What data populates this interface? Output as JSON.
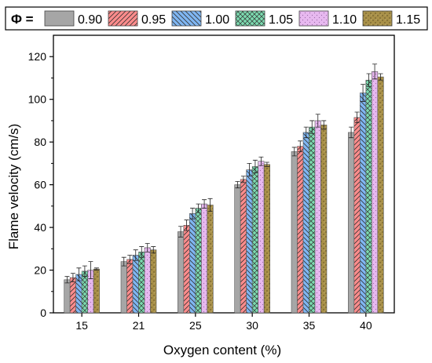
{
  "chart_data": {
    "type": "bar",
    "title": "",
    "xlabel": "Oxygen content (%)",
    "ylabel": "Flame velocity (cm/s)",
    "ylim": [
      0,
      130
    ],
    "yticks": [
      0,
      20,
      40,
      60,
      80,
      100,
      120
    ],
    "categories": [
      "15",
      "21",
      "25",
      "30",
      "35",
      "40"
    ],
    "legend": {
      "title": "Φ =",
      "placement": "top"
    },
    "series": [
      {
        "name": "0.90",
        "color": "#a6a6a6",
        "pattern": "solid",
        "values": [
          15.5,
          24,
          38,
          60,
          75.5,
          84.5
        ],
        "errors": [
          1.5,
          2,
          2.5,
          1.5,
          2,
          2.5
        ]
      },
      {
        "name": "0.95",
        "color": "#ff8c8c",
        "pattern": "diag-right",
        "values": [
          16.5,
          25,
          41,
          62.5,
          78,
          91.5
        ],
        "errors": [
          2,
          2,
          2.5,
          1.5,
          2.5,
          2.5
        ]
      },
      {
        "name": "1.00",
        "color": "#7fb6f2",
        "pattern": "diag-left",
        "values": [
          18,
          27,
          46.5,
          67,
          84.5,
          103
        ],
        "errors": [
          3,
          2.5,
          2.5,
          3,
          2.5,
          4
        ]
      },
      {
        "name": "1.05",
        "color": "#7cdbb0",
        "pattern": "crosshatch",
        "values": [
          19.5,
          28.5,
          49,
          68.5,
          87,
          109
        ],
        "errors": [
          2.5,
          2.5,
          2,
          3,
          3,
          3
        ]
      },
      {
        "name": "1.10",
        "color": "#e7b8ef",
        "pattern": "dots",
        "values": [
          20,
          30.5,
          51,
          71,
          90,
          113
        ],
        "errors": [
          4,
          2,
          2,
          2,
          3,
          3.5
        ]
      },
      {
        "name": "1.15",
        "color": "#a89048",
        "pattern": "speckle",
        "values": [
          20.5,
          29.5,
          50.5,
          69.5,
          88,
          110.5
        ],
        "errors": [
          0.5,
          1.5,
          3,
          1,
          2,
          1.5
        ]
      }
    ]
  }
}
